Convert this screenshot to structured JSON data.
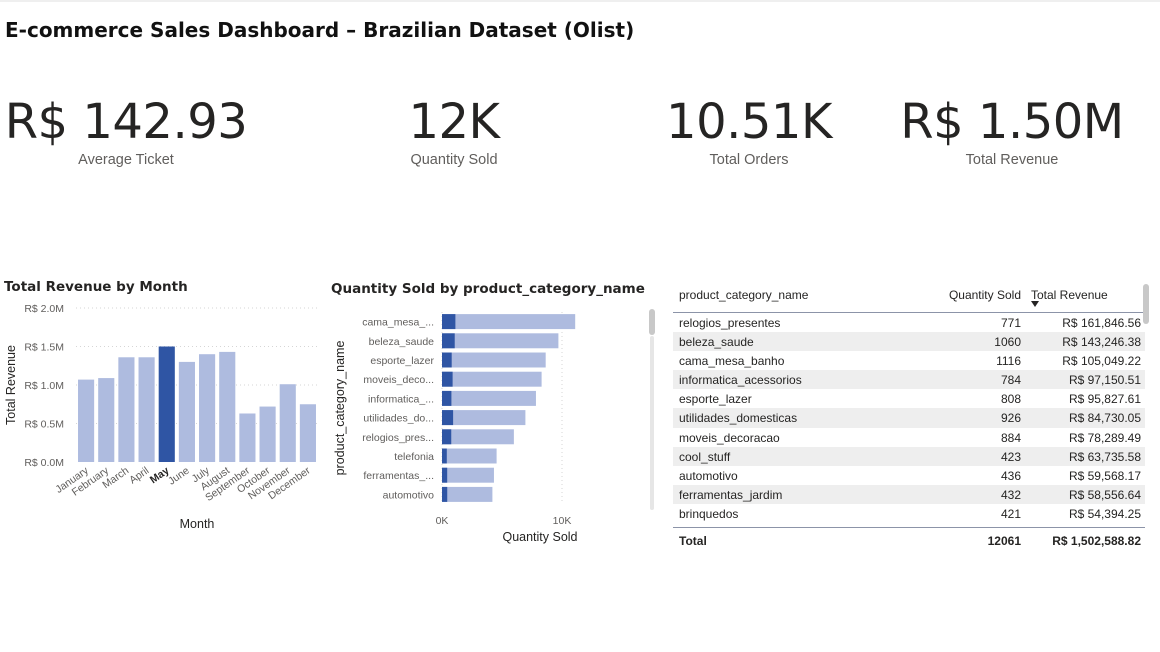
{
  "title": "E-commerce Sales Dashboard – Brazilian Dataset (Olist)",
  "kpis": [
    {
      "value": "R$ 142.93",
      "label": "Average Ticket"
    },
    {
      "value": "12K",
      "label": "Quantity Sold"
    },
    {
      "value": "10.51K",
      "label": "Total Orders"
    },
    {
      "value": "R$ 1.50M",
      "label": "Total Revenue"
    }
  ],
  "colors": {
    "highlight": "#2f55a4",
    "base": "#aebbdf",
    "grid": "#d6d6d6"
  },
  "chart_data": [
    {
      "type": "bar",
      "title": "Total Revenue by Month",
      "xlabel": "Month",
      "ylabel": "Total Revenue",
      "categories": [
        "January",
        "February",
        "March",
        "April",
        "May",
        "June",
        "July",
        "August",
        "September",
        "October",
        "November",
        "December"
      ],
      "values": [
        1.07,
        1.09,
        1.36,
        1.36,
        1.5,
        1.3,
        1.4,
        1.43,
        0.63,
        0.72,
        1.01,
        0.75
      ],
      "highlight_index": 4,
      "ylim": [
        0,
        2.0
      ],
      "yticks": [
        "R$ 0.0M",
        "R$ 0.5M",
        "R$ 1.0M",
        "R$ 1.5M",
        "R$ 2.0M"
      ],
      "grid": true
    },
    {
      "type": "bar",
      "orientation": "horizontal",
      "title": "Quantity Sold by product_category_name",
      "xlabel": "Quantity Sold",
      "ylabel": "product_category_name",
      "categories": [
        "cama_mesa_...",
        "beleza_saude",
        "esporte_lazer",
        "moveis_deco...",
        "informatica_...",
        "utilidades_do...",
        "relogios_pres...",
        "telefonia",
        "ferramentas_...",
        "automotivo"
      ],
      "values": [
        11100,
        9700,
        8640,
        8300,
        7830,
        6950,
        5990,
        4550,
        4330,
        4200
      ],
      "highlight_values": [
        1116,
        1060,
        808,
        884,
        784,
        926,
        771,
        400,
        432,
        436
      ],
      "xlim": [
        0,
        12000
      ],
      "xticks": [
        "0K",
        "10K"
      ],
      "grid": true
    }
  ],
  "table": {
    "headers": [
      "product_category_name",
      "Quantity Sold",
      "Total Revenue"
    ],
    "rows": [
      [
        "relogios_presentes",
        "771",
        "R$ 161,846.56"
      ],
      [
        "beleza_saude",
        "1060",
        "R$ 143,246.38"
      ],
      [
        "cama_mesa_banho",
        "1116",
        "R$ 105,049.22"
      ],
      [
        "informatica_acessorios",
        "784",
        "R$ 97,150.51"
      ],
      [
        "esporte_lazer",
        "808",
        "R$ 95,827.61"
      ],
      [
        "utilidades_domesticas",
        "926",
        "R$ 84,730.05"
      ],
      [
        "moveis_decoracao",
        "884",
        "R$ 78,289.49"
      ],
      [
        "cool_stuff",
        "423",
        "R$ 63,735.58"
      ],
      [
        "automotivo",
        "436",
        "R$ 59,568.17"
      ],
      [
        "ferramentas_jardim",
        "432",
        "R$ 58,556.64"
      ],
      [
        "brinquedos",
        "421",
        "R$ 54,394.25"
      ]
    ],
    "total": [
      "Total",
      "12061",
      "R$ 1,502,588.82"
    ]
  }
}
